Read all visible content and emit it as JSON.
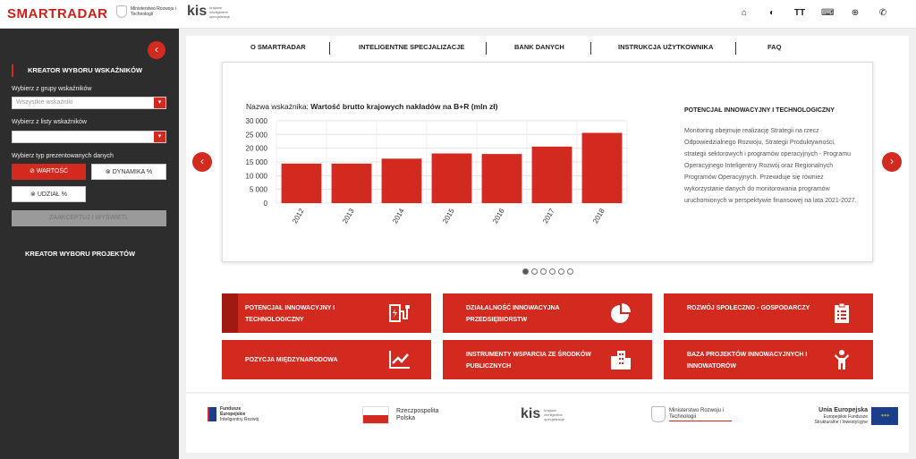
{
  "header": {
    "logo": "SMARTRADAR",
    "ministry": "Ministerstwo Rozwoju i Technologii",
    "kis": "kis",
    "kis_sub": "krajowe inteligentne specjalizacje",
    "icons": [
      "home-icon",
      "contrast-icon",
      "text-size-icon",
      "keyboard-icon",
      "globe-icon",
      "phone-icon"
    ]
  },
  "sidebar": {
    "heading": "KREATOR WYBORU WSKAŹNIKÓW",
    "group_label": "Wybierz z grupy wskaźników",
    "group_placeholder": "Wszystkie wskaźniki",
    "list_label": "Wybierz z listy wskaźników",
    "list_value": "",
    "type_label": "Wybierz typ prezentowanych danych",
    "btn_value": "WARTOŚĆ",
    "btn_dynamics": "DYNAMIKA %",
    "btn_share": "UDZIAŁ %",
    "btn_accept": "ZAAKCEPTUJ I WYŚWIETL",
    "projects": "KREATOR WYBORU PROJEKTÓW"
  },
  "nav": [
    "O SMARTRADAR",
    "INTELIGENTNE SPECJALIZACJE",
    "BANK DANYCH",
    "INSTRUKCJA UŻYTKOWNIKA",
    "FAQ"
  ],
  "slide": {
    "indicator_prefix": "Nazwa wskaźnika:",
    "indicator_name": "Wartość brutto krajowych nakładów na B+R (mln zł)",
    "info_heading": "POTENCJAŁ INNOWACYJNY I TECHNOLOGICZNY",
    "info_text": "Monitoring obejmuje realizację Strategii na rzecz Odpowiedzialnego Rozwoju, Strategii Produktywności, strategii sektorowych i programów operacyjnych - Programu Operacyjnego Inteligentny Rozwój oraz Regionalnych Programów Operacyjnych. Przewiduje się również wykorzystanie danych do monitorowania programów uruchomionych w perspektywie finansowej na lata 2021-2027.",
    "dots_count": 6,
    "active_dot": 0
  },
  "chart_data": {
    "type": "bar",
    "categories": [
      "2012",
      "2013",
      "2014",
      "2015",
      "2016",
      "2017",
      "2018"
    ],
    "values": [
      14400,
      14400,
      16200,
      18100,
      17900,
      20600,
      25600
    ],
    "yticks": [
      "30 000",
      "25 000",
      "20 000",
      "15 000",
      "10 000",
      "5 000",
      "0"
    ],
    "ylim": [
      0,
      30000
    ],
    "grid": true,
    "color": "#d32a20"
  },
  "tiles": [
    {
      "label": "POTENCJAŁ INNOWACYJNY I TECHNOLOGICZNY",
      "icon": "charging-station-icon"
    },
    {
      "label": "DZIAŁALNOŚĆ INNOWACYJNA PRZEDSIĘBIORSTW",
      "icon": "pie-chart-icon"
    },
    {
      "label": "ROZWÓJ SPOŁECZNO - GOSPODARCZY",
      "icon": "clipboard-list-icon"
    },
    {
      "label": "POZYCJA MIĘDZYNARODOWA",
      "icon": "trend-chart-icon"
    },
    {
      "label": "INSTRUMENTY WSPARCIA ZE ŚRODKÓW PUBLICZNYCH",
      "icon": "buildings-icon"
    },
    {
      "label": "BAZA PROJEKTÓW INNOWACYJNYCH I INNOWATORÓW",
      "icon": "person-icon"
    }
  ],
  "footer": {
    "fe_title": "Fundusze Europejskie",
    "fe_sub": "Inteligentny Rozwój",
    "pl": "Rzeczpospolita Polska",
    "kis": "kis",
    "kis_sub": "krajowe inteligentne specjalizacje",
    "ministry": "Ministerstwo Rozwoju i Technologii",
    "eu_title": "Unia Europejska",
    "eu_sub": "Europejskie Fundusze Strukturalne i Inwestycyjne"
  },
  "colors": {
    "accent": "#d32a20",
    "sidebar": "#2d2d2d"
  }
}
